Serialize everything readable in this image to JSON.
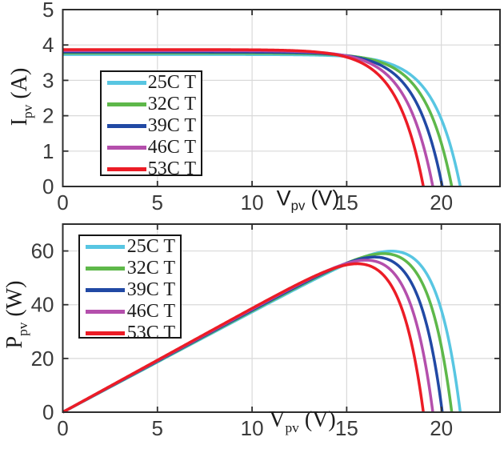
{
  "figure": {
    "background": "#ffffff",
    "frame_color": "#2e2e2e",
    "grid_color": "#d9d9d9",
    "tick_label_color": "#3a3a3a",
    "line_width": 3.5
  },
  "chart_data": [
    {
      "id": "iv-curve-plot",
      "type": "line",
      "quantity": "current",
      "xlabel": {
        "symbol": "V",
        "sub": "pv",
        "unit": "(V)"
      },
      "ylabel": {
        "symbol": "I",
        "sub": "pv",
        "unit": "(A)"
      },
      "xlim": [
        0,
        23.1
      ],
      "ylim": [
        0,
        5
      ],
      "xticks": [
        0,
        5,
        10,
        15,
        20
      ],
      "yticks": [
        0,
        1,
        2,
        3,
        4,
        5
      ],
      "grid": true,
      "legend_position": "inside-left-middle",
      "model": "I(V) = Isc*(1 - exp((V - Voc)/knee)), clipped to [0, Isc]",
      "series": [
        {
          "label": "25C T",
          "color": "#58C6E2",
          "isc_A": 3.73,
          "voc_V": 21.0,
          "knee": 1.4
        },
        {
          "label": "32C T",
          "color": "#5EB84A",
          "isc_A": 3.77,
          "voc_V": 20.55,
          "knee": 1.4
        },
        {
          "label": "39C T",
          "color": "#2149A4",
          "isc_A": 3.8,
          "voc_V": 20.05,
          "knee": 1.4
        },
        {
          "label": "46C T",
          "color": "#B44FAC",
          "isc_A": 3.84,
          "voc_V": 19.55,
          "knee": 1.4
        },
        {
          "label": "53C T",
          "color": "#EC1C26",
          "isc_A": 3.87,
          "voc_V": 19.05,
          "knee": 1.4
        }
      ]
    },
    {
      "id": "pv-curve-plot",
      "type": "line",
      "quantity": "power",
      "xlabel": {
        "symbol": "V",
        "sub": "pv",
        "unit": "(V)"
      },
      "ylabel": {
        "symbol": "P",
        "sub": "pv",
        "unit": "(W)"
      },
      "xlim": [
        0,
        23.1
      ],
      "ylim": [
        0,
        70
      ],
      "xticks": [
        0,
        5,
        10,
        15,
        20
      ],
      "yticks": [
        0,
        20,
        40,
        60
      ],
      "grid": true,
      "legend_position": "inside-left-top",
      "model": "P(V) = V * Isc*(1 - exp((V - Voc)/knee))",
      "series": [
        {
          "label": "25C T",
          "color": "#58C6E2",
          "isc_A": 3.73,
          "voc_V": 21.0,
          "knee": 1.4,
          "p_max_W": 60.5,
          "v_mpp_V": 17.4
        },
        {
          "label": "32C T",
          "color": "#5EB84A",
          "isc_A": 3.77,
          "voc_V": 20.55,
          "knee": 1.4,
          "p_max_W": 59.0,
          "v_mpp_V": 17.0
        },
        {
          "label": "39C T",
          "color": "#2149A4",
          "isc_A": 3.8,
          "voc_V": 20.05,
          "knee": 1.4,
          "p_max_W": 57.0,
          "v_mpp_V": 16.6
        },
        {
          "label": "46C T",
          "color": "#B44FAC",
          "isc_A": 3.84,
          "voc_V": 19.55,
          "knee": 1.4,
          "p_max_W": 55.0,
          "v_mpp_V": 16.2
        },
        {
          "label": "53C T",
          "color": "#EC1C26",
          "isc_A": 3.87,
          "voc_V": 19.05,
          "knee": 1.4,
          "p_max_W": 53.5,
          "v_mpp_V": 15.8
        }
      ]
    }
  ]
}
